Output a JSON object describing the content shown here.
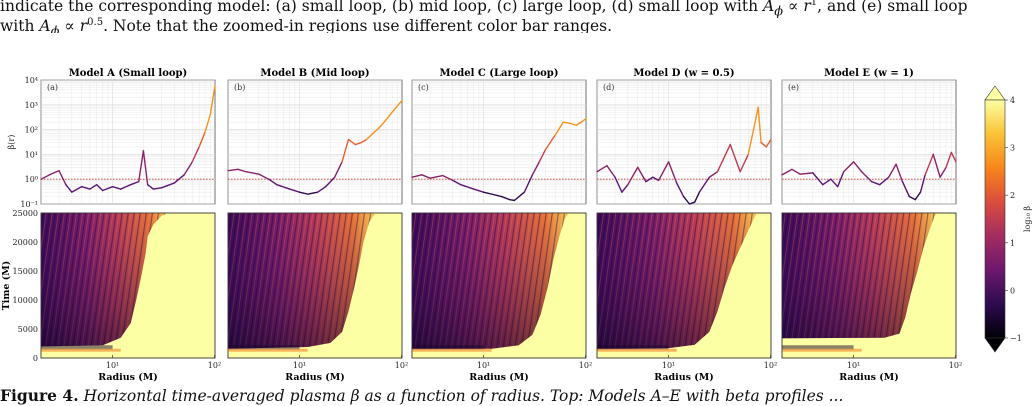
{
  "caption_top": {
    "line1_pre": "indicate the corresponding model: (a) small loop, (b) mid loop, (c) large loop, (d) small loop with ",
    "line1_math": "A",
    "line1_sub": "ϕ",
    "line1_mid": " ∝ ",
    "line1_r": "r",
    "line1_exp": "1",
    "line1_post": ", and (e) small loop",
    "line2_pre": "with ",
    "line2_math": "A",
    "line2_sub": "ϕ",
    "line2_mid": " ∝ ",
    "line2_r": "r",
    "line2_exp": "0.5",
    "line2_post": ". Note that the zoomed-in regions use different color bar ranges."
  },
  "caption_bottom": {
    "fig_label": "Figure 4.",
    "text": " Horizontal time-averaged plasma β as a function of radius. Top: Models A–E with beta profiles ..."
  },
  "panels": [
    {
      "title": "Model A (Small loop)",
      "letter": "(a)"
    },
    {
      "title": "Model B (Mid loop)",
      "letter": "(b)"
    },
    {
      "title": "Model C (Large loop)",
      "letter": "(c)"
    },
    {
      "title": "Model D (w = 0.5)",
      "letter": "(d)"
    },
    {
      "title": "Model E (w = 1)",
      "letter": "(e)"
    }
  ],
  "axes": {
    "top_ylabel": "β(r)",
    "top_yticks": [
      "10⁴",
      "10³",
      "10²",
      "10¹",
      "10⁰",
      "10⁻¹"
    ],
    "bottom_ylabel": "Time (M)",
    "bottom_yticks": [
      "25000",
      "20000",
      "15000",
      "10000",
      "5000",
      "0"
    ],
    "xlabel": "Radius (M)",
    "xticks": [
      "10¹",
      "10²"
    ]
  },
  "colorbar": {
    "label": "log₁₀ β",
    "ticks": [
      "4",
      "3",
      "2",
      "1",
      "0",
      "−1"
    ],
    "colors": [
      "#000004",
      "#2c0b4f",
      "#6b176e",
      "#a52c60",
      "#d94d3e",
      "#f6841a",
      "#fbc338",
      "#fcffa4"
    ]
  },
  "chart_data": [
    {
      "type": "line",
      "title": "Model A (Small loop)",
      "xlabel": "Radius (M)",
      "ylabel": "β(r)",
      "xscale": "log",
      "yscale": "log",
      "xlim": [
        2,
        100
      ],
      "ylim": [
        0.1,
        10000
      ],
      "series": [
        {
          "x": [
            2,
            2.5,
            3,
            3.5,
            4,
            5,
            6,
            7,
            8,
            10,
            12,
            15,
            18,
            20,
            22,
            25,
            30,
            40,
            50,
            60,
            70,
            80,
            90,
            100
          ],
          "y": [
            1.0,
            1.6,
            2.2,
            0.6,
            0.3,
            0.5,
            0.4,
            0.6,
            0.35,
            0.5,
            0.4,
            0.6,
            0.8,
            14,
            0.6,
            0.4,
            0.45,
            0.7,
            1.5,
            5,
            20,
            80,
            400,
            6000
          ]
        }
      ],
      "reference_line": 1
    },
    {
      "type": "line",
      "title": "Model B (Mid loop)",
      "xlabel": "Radius (M)",
      "ylabel": "β(r)",
      "xscale": "log",
      "yscale": "log",
      "xlim": [
        2,
        100
      ],
      "ylim": [
        0.1,
        10000
      ],
      "series": [
        {
          "x": [
            2,
            2.5,
            3,
            4,
            5,
            6,
            8,
            10,
            12,
            15,
            18,
            22,
            26,
            30,
            35,
            40,
            45,
            50,
            60,
            70,
            80,
            100
          ],
          "y": [
            2.2,
            2.5,
            2.0,
            1.6,
            1.0,
            0.6,
            0.4,
            0.3,
            0.25,
            0.3,
            0.5,
            1.2,
            5,
            40,
            25,
            30,
            40,
            60,
            120,
            250,
            500,
            1500
          ]
        }
      ],
      "reference_line": 1
    },
    {
      "type": "line",
      "title": "Model C (Large loop)",
      "xlabel": "Radius (M)",
      "ylabel": "β(r)",
      "xscale": "log",
      "yscale": "log",
      "xlim": [
        2,
        100
      ],
      "ylim": [
        0.1,
        10000
      ],
      "series": [
        {
          "x": [
            2,
            2.5,
            3,
            4,
            5,
            6,
            8,
            10,
            12,
            15,
            18,
            20,
            25,
            30,
            35,
            40,
            50,
            60,
            70,
            80,
            90,
            100
          ],
          "y": [
            1.2,
            1.5,
            1.1,
            1.4,
            0.9,
            0.6,
            0.4,
            0.3,
            0.25,
            0.2,
            0.15,
            0.14,
            0.3,
            1.5,
            5,
            15,
            60,
            200,
            180,
            150,
            200,
            280
          ]
        }
      ],
      "reference_line": 1
    },
    {
      "type": "line",
      "title": "Model D (w = 0.5)",
      "xlabel": "Radius (M)",
      "ylabel": "β(r)",
      "xscale": "log",
      "yscale": "log",
      "xlim": [
        2,
        100
      ],
      "ylim": [
        0.1,
        10000
      ],
      "series": [
        {
          "x": [
            2,
            2.5,
            3,
            3.5,
            4,
            5,
            6,
            7,
            8,
            10,
            12,
            14,
            16,
            18,
            20,
            25,
            30,
            40,
            50,
            60,
            70,
            75,
            80,
            90,
            100
          ],
          "y": [
            2,
            3.5,
            1.2,
            0.3,
            0.6,
            3,
            0.8,
            1.2,
            0.9,
            5,
            0.7,
            0.2,
            0.1,
            0.12,
            0.3,
            1.2,
            2,
            25,
            2,
            10,
            200,
            800,
            30,
            20,
            40
          ]
        }
      ],
      "reference_line": 1
    },
    {
      "type": "line",
      "title": "Model E (w = 1)",
      "xlabel": "Radius (M)",
      "ylabel": "β(r)",
      "xscale": "log",
      "yscale": "log",
      "xlim": [
        2,
        100
      ],
      "ylim": [
        0.1,
        10000
      ],
      "series": [
        {
          "x": [
            2,
            2.5,
            3,
            4,
            5,
            6,
            7,
            8,
            10,
            12,
            15,
            18,
            22,
            26,
            30,
            35,
            40,
            45,
            50,
            60,
            70,
            80,
            90,
            100
          ],
          "y": [
            1.5,
            2.5,
            1.6,
            1.8,
            0.6,
            1.0,
            0.5,
            2,
            5,
            2,
            0.8,
            0.6,
            1.2,
            4,
            0.8,
            0.2,
            0.15,
            0.3,
            1.5,
            10,
            1.2,
            3,
            12,
            5
          ]
        }
      ],
      "reference_line": 1
    }
  ]
}
